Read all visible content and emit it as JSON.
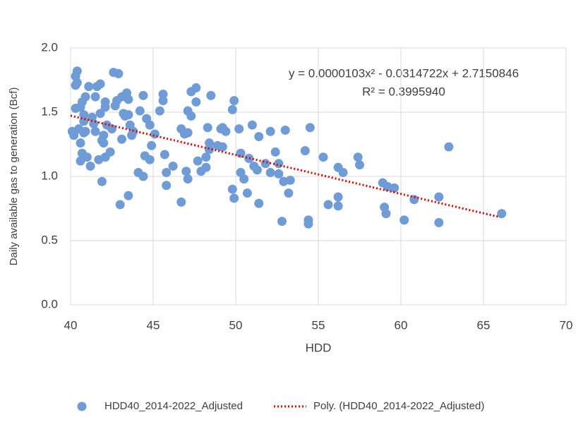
{
  "chart_data": {
    "type": "scatter",
    "xlabel": "HDD",
    "ylabel": "Daily available gas to generation (Bcf)",
    "annotations": [
      "y = 0.0000103x² - 0.0314722x + 2.7150846",
      "R² = 0.3995940"
    ],
    "xlim": [
      40,
      70
    ],
    "xticks": [
      40,
      45,
      50,
      55,
      60,
      65,
      70
    ],
    "ylim": [
      0,
      2
    ],
    "yticks": [
      {
        "value": 0,
        "label": "0.0"
      },
      {
        "value": 0.5,
        "label": "0.5"
      },
      {
        "value": 1,
        "label": "1.0"
      },
      {
        "value": 1.5,
        "label": "1.5"
      },
      {
        "value": 2,
        "label": "2.0"
      }
    ],
    "grid": true,
    "legend": "bottom",
    "series": [
      {
        "name": "HDD40_2014-2022_Adjusted",
        "type": "scatter",
        "color": "#6f9bd6",
        "x": [
          40.1,
          40.2,
          40.3,
          40.4,
          40.3,
          40.4,
          40.3,
          40.5,
          40.6,
          40.7,
          40.8,
          40.9,
          40.6,
          40.7,
          40.6,
          40.8,
          40.9,
          40.8,
          41.0,
          41.1,
          41.2,
          41.3,
          41.4,
          41.5,
          41.5,
          41.6,
          41.7,
          41.8,
          41.8,
          41.9,
          42.0,
          42.0,
          41.9,
          42.1,
          42.1,
          42.1,
          42.2,
          42.4,
          42.5,
          42.6,
          42.7,
          42.9,
          42.8,
          43.0,
          43.1,
          43.1,
          43.2,
          43.3,
          43.4,
          43.5,
          43.5,
          43.5,
          43.6,
          43.7,
          43.8,
          44.1,
          44.2,
          44.4,
          44.4,
          44.5,
          44.6,
          44.8,
          44.9,
          44.8,
          45.1,
          45.4,
          45.6,
          45.6,
          45.7,
          45.8,
          45.8,
          46.2,
          46.7,
          46.7,
          46.9,
          47.1,
          47.0,
          47.1,
          47.1,
          47.3,
          47.3,
          47.6,
          47.6,
          47.7,
          47.9,
          48.2,
          48.2,
          48.3,
          48.4,
          48.4,
          48.5,
          48.9,
          49.1,
          49.2,
          49.2,
          49.4,
          49.8,
          49.9,
          49.8,
          49.9,
          50.2,
          50.3,
          50.3,
          50.5,
          50.7,
          50.8,
          51.0,
          51.1,
          51.3,
          51.4,
          51.4,
          51.8,
          52.1,
          52.1,
          52.4,
          52.6,
          52.6,
          52.8,
          52.9,
          53.0,
          53.2,
          53.3,
          54.2,
          54.4,
          54.4,
          54.5,
          55.3,
          55.6,
          56.2,
          56.2,
          56.2,
          56.5,
          57.4,
          57.5,
          58.9,
          59.0,
          59.1,
          59.2,
          59.6,
          60.2,
          60.8,
          62.3,
          62.3,
          62.9,
          66.1
        ],
        "values": [
          1.35,
          1.32,
          1.78,
          1.82,
          1.71,
          1.73,
          1.53,
          1.37,
          1.54,
          1.58,
          1.48,
          1.62,
          1.12,
          1.18,
          1.26,
          1.34,
          1.35,
          1.43,
          1.15,
          1.7,
          1.08,
          1.46,
          1.41,
          1.35,
          1.62,
          1.7,
          1.13,
          1.72,
          1.49,
          1.28,
          1.32,
          1.26,
          0.96,
          1.15,
          1.54,
          1.58,
          1.4,
          1.19,
          1.37,
          1.81,
          1.55,
          1.8,
          1.59,
          0.78,
          1.29,
          1.62,
          1.49,
          1.47,
          1.65,
          1.6,
          1.48,
          0.85,
          1.4,
          1.32,
          1.35,
          1.03,
          1.51,
          1.0,
          1.63,
          1.16,
          1.45,
          1.4,
          1.24,
          1.13,
          1.33,
          1.51,
          1.64,
          1.59,
          1.17,
          1.03,
          0.93,
          1.08,
          1.37,
          0.8,
          1.33,
          1.34,
          1.04,
          0.98,
          1.51,
          1.47,
          1.66,
          1.58,
          1.69,
          1.12,
          1.04,
          1.07,
          1.15,
          1.38,
          1.26,
          1.21,
          1.63,
          1.24,
          1.37,
          1.38,
          1.23,
          1.35,
          1.52,
          1.59,
          0.9,
          0.83,
          1.37,
          1.18,
          1.03,
          0.98,
          0.87,
          1.14,
          1.4,
          1.08,
          1.05,
          0.79,
          1.31,
          1.1,
          1.35,
          1.03,
          1.19,
          1.1,
          1.02,
          0.65,
          0.96,
          1.36,
          0.87,
          0.97,
          1.2,
          0.66,
          0.63,
          1.38,
          1.15,
          0.78,
          1.07,
          0.84,
          0.77,
          1.03,
          1.15,
          1.09,
          0.95,
          0.76,
          0.71,
          0.92,
          0.91,
          0.66,
          0.82,
          0.84,
          0.64,
          1.23,
          0.71
        ]
      },
      {
        "name": "Poly. (HDD40_2014-2022_Adjusted)",
        "type": "line",
        "dashed": true,
        "color": "#e00000",
        "x": [
          40,
          42,
          44,
          46,
          48,
          50,
          52,
          54,
          56,
          58,
          60,
          62,
          64,
          66
        ],
        "values": [
          1.473,
          1.411,
          1.35,
          1.289,
          1.228,
          1.167,
          1.106,
          1.046,
          0.985,
          0.924,
          0.864,
          0.803,
          0.743,
          0.683
        ]
      }
    ]
  }
}
